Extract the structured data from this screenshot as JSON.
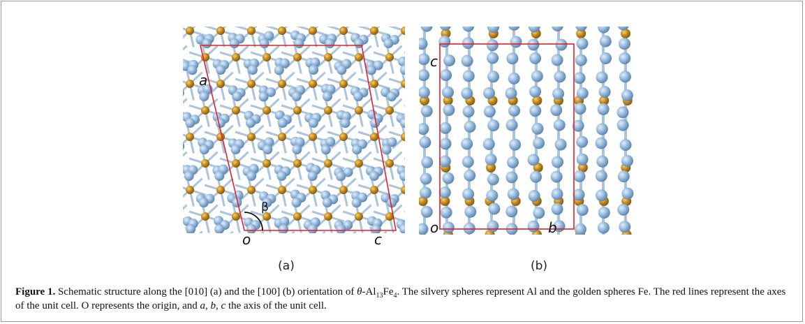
{
  "figure": {
    "panels": [
      {
        "label": "(a)",
        "axis_labels": [
          "a",
          "β",
          "o",
          "c"
        ]
      },
      {
        "label": "(b)",
        "axis_labels": [
          "c",
          "o",
          "b"
        ]
      }
    ],
    "caption": [
      "Figure 1.",
      " Schematic structure along the [010] (a) and the [100] (b) orientation of ",
      "θ",
      "-Al",
      "13",
      "Fe",
      "4",
      ". The silvery spheres represent Al and the golden spheres Fe. The red lines represent the axes of the unit cell. O represents the origin, and ",
      "a",
      ", ",
      "b",
      ", ",
      "c",
      " the axis of the unit cell."
    ]
  }
}
